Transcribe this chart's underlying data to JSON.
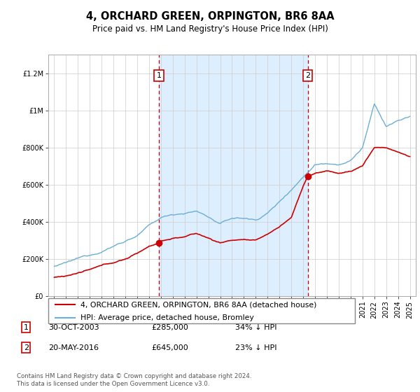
{
  "title": "4, ORCHARD GREEN, ORPINGTON, BR6 8AA",
  "subtitle": "Price paid vs. HM Land Registry's House Price Index (HPI)",
  "legend_line1": "4, ORCHARD GREEN, ORPINGTON, BR6 8AA (detached house)",
  "legend_line2": "HPI: Average price, detached house, Bromley",
  "sale1_date": "30-OCT-2003",
  "sale1_price": "£285,000",
  "sale1_hpi": "34% ↓ HPI",
  "sale1_year": 2003.83,
  "sale1_value": 285000,
  "sale2_date": "20-MAY-2016",
  "sale2_price": "£645,000",
  "sale2_hpi": "23% ↓ HPI",
  "sale2_year": 2016.38,
  "sale2_value": 645000,
  "footer": "Contains HM Land Registry data © Crown copyright and database right 2024.\nThis data is licensed under the Open Government Licence v3.0.",
  "hpi_color": "#6baed6",
  "price_color": "#cc0000",
  "shaded_color": "#ddeeff",
  "dashed_color": "#cc0000",
  "ylim": [
    0,
    1300000
  ],
  "yticks": [
    0,
    200000,
    400000,
    600000,
    800000,
    1000000,
    1200000
  ],
  "xlim_start": 1994.5,
  "xlim_end": 2025.5,
  "hpi_anchors_years": [
    1995,
    1996,
    1997,
    1998,
    1999,
    2000,
    2001,
    2002,
    2003,
    2004,
    2005,
    2006,
    2007,
    2008,
    2009,
    2010,
    2011,
    2012,
    2013,
    2014,
    2015,
    2016,
    2017,
    2018,
    2019,
    2020,
    2021,
    2022,
    2023,
    2024,
    2025
  ],
  "hpi_anchors_vals": [
    160000,
    175000,
    195000,
    215000,
    240000,
    270000,
    300000,
    330000,
    380000,
    420000,
    440000,
    450000,
    460000,
    430000,
    390000,
    420000,
    420000,
    410000,
    450000,
    510000,
    580000,
    650000,
    720000,
    730000,
    730000,
    750000,
    820000,
    1050000,
    930000,
    960000,
    980000
  ],
  "price_anchors_years": [
    1995,
    1996,
    1997,
    1998,
    1999,
    2000,
    2001,
    2002,
    2003,
    2003.83,
    2004,
    2005,
    2006,
    2007,
    2008,
    2009,
    2010,
    2011,
    2012,
    2013,
    2014,
    2015,
    2016,
    2016.38,
    2017,
    2018,
    2019,
    2020,
    2021,
    2022,
    2023,
    2024,
    2025
  ],
  "price_anchors_vals": [
    100000,
    110000,
    125000,
    140000,
    158000,
    175000,
    195000,
    225000,
    265000,
    285000,
    295000,
    310000,
    320000,
    335000,
    310000,
    285000,
    300000,
    305000,
    295000,
    330000,
    370000,
    420000,
    590000,
    645000,
    660000,
    670000,
    660000,
    670000,
    700000,
    800000,
    800000,
    775000,
    750000
  ]
}
